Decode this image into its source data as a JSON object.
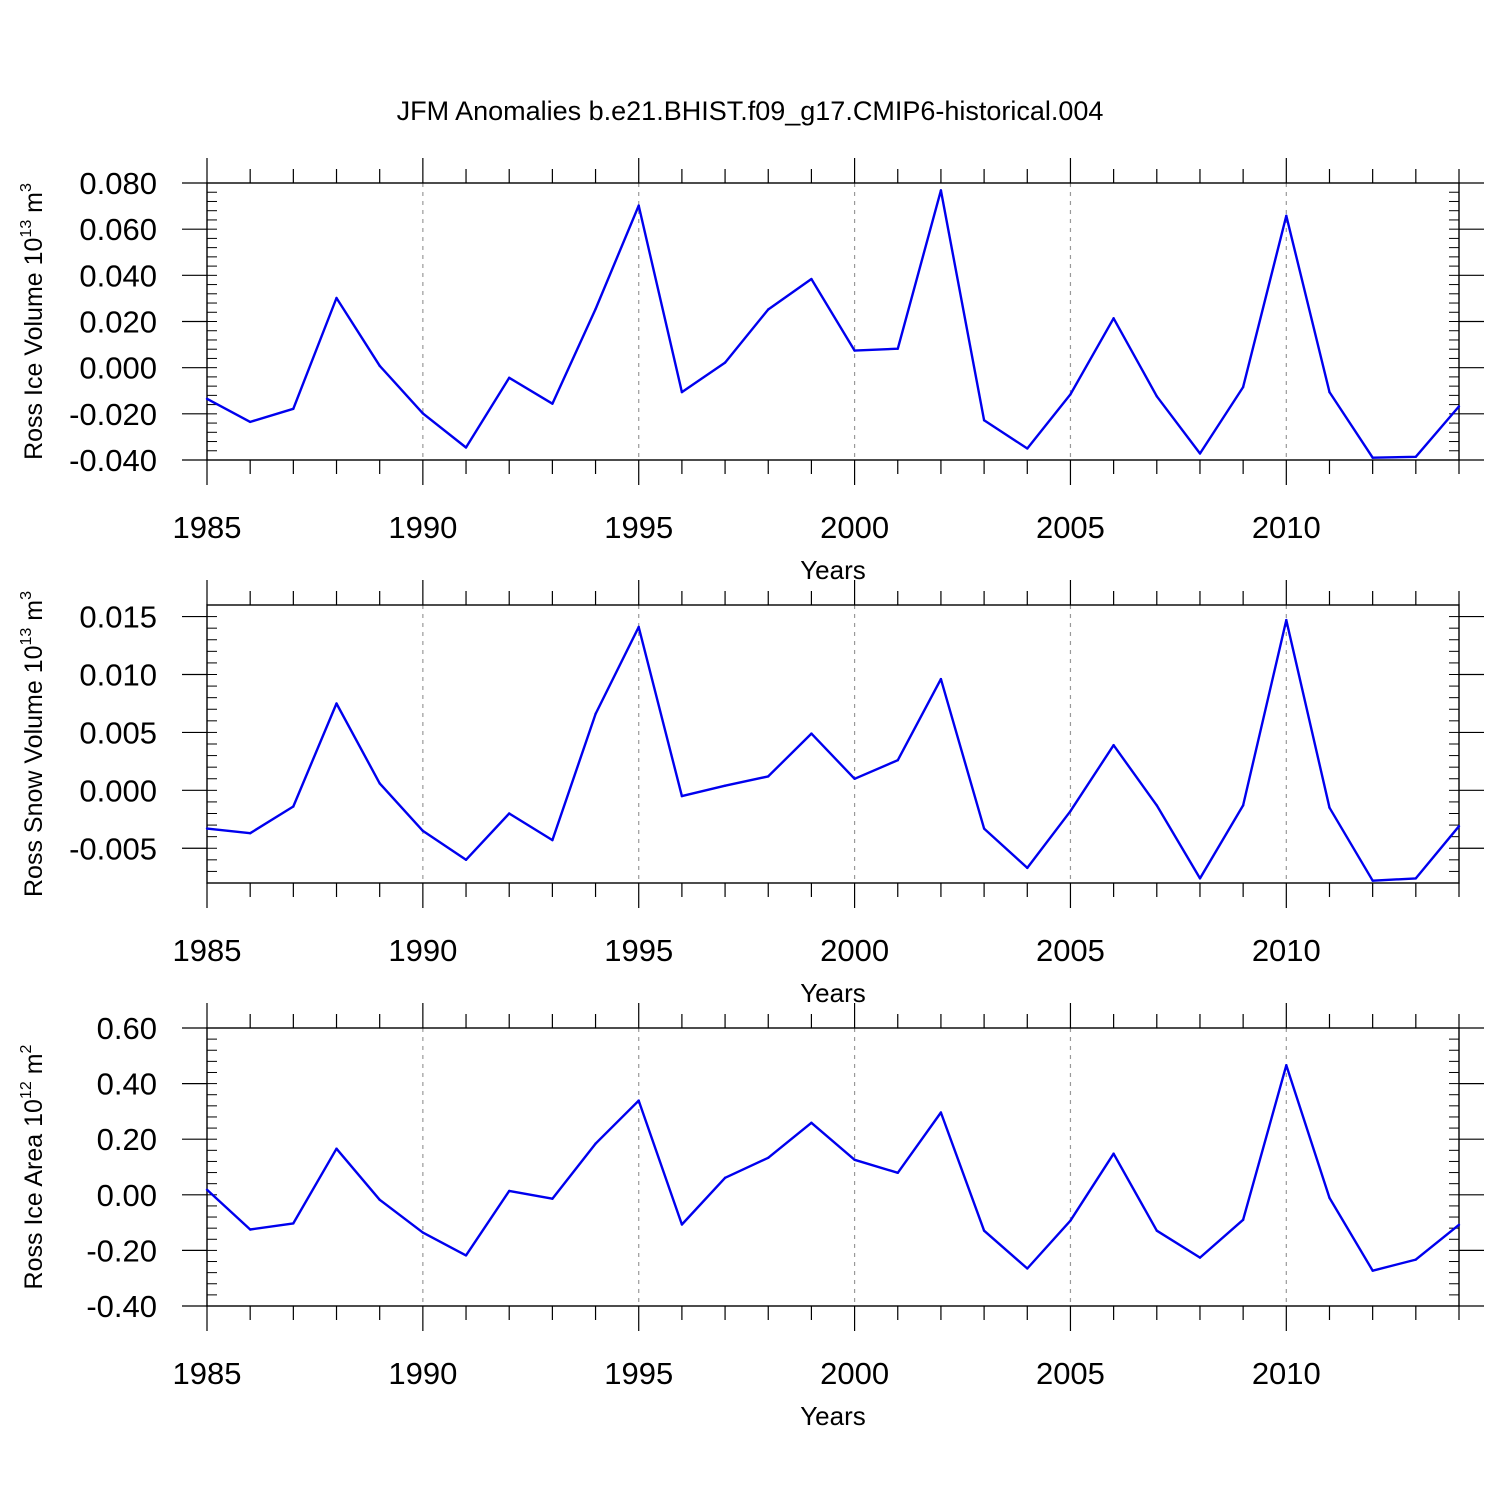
{
  "figure": {
    "title": "JFM Anomalies b.e21.BHIST.f09_g17.CMIP6-historical.004"
  },
  "colors": {
    "line": "#0000ee",
    "axis": "#000000",
    "grid": "#999999"
  },
  "chart_data": [
    {
      "type": "line",
      "ylabel": {
        "text": "Ross Ice Volume 10",
        "exponent": "13",
        "unit": " m",
        "unit_exponent": "3"
      },
      "xlabel": "Years",
      "xlim": [
        1985,
        2014
      ],
      "ylim": [
        -0.04,
        0.08
      ],
      "yticks": [
        -0.04,
        -0.02,
        0.0,
        0.02,
        0.04,
        0.06,
        0.08
      ],
      "ytick_labels": [
        "-0.040",
        "-0.020",
        "0.000",
        "0.020",
        "0.040",
        "0.060",
        "0.080"
      ],
      "xticks": [
        1985,
        1990,
        1995,
        2000,
        2005,
        2010
      ],
      "xtick_labels": [
        "1985",
        "1990",
        "1995",
        "2000",
        "2005",
        "2010"
      ],
      "x": [
        1985,
        1986,
        1987,
        1988,
        1989,
        1990,
        1991,
        1992,
        1993,
        1994,
        1995,
        1996,
        1997,
        1998,
        1999,
        2000,
        2001,
        2002,
        2003,
        2004,
        2005,
        2006,
        2007,
        2008,
        2009,
        2010,
        2011,
        2012,
        2013,
        2014
      ],
      "values": [
        -0.0135,
        -0.0235,
        -0.0178,
        0.0302,
        0.0008,
        -0.0198,
        -0.0346,
        -0.0044,
        -0.0156,
        0.0254,
        0.0702,
        -0.0106,
        0.0022,
        0.0252,
        0.0384,
        0.0074,
        0.0082,
        0.0768,
        -0.0228,
        -0.035,
        -0.0116,
        0.0214,
        -0.0124,
        -0.0372,
        -0.0084,
        0.0658,
        -0.0106,
        -0.039,
        -0.0386,
        -0.0168
      ]
    },
    {
      "type": "line",
      "ylabel": {
        "text": "Ross Snow Volume 10",
        "exponent": "13",
        "unit": " m",
        "unit_exponent": "3"
      },
      "xlabel": "Years",
      "xlim": [
        1985,
        2014
      ],
      "ylim": [
        -0.008,
        0.016
      ],
      "yticks": [
        -0.005,
        0.0,
        0.005,
        0.01,
        0.015
      ],
      "ytick_labels": [
        "-0.005",
        "0.000",
        "0.005",
        "0.010",
        "0.015"
      ],
      "xticks": [
        1985,
        1990,
        1995,
        2000,
        2005,
        2010
      ],
      "xtick_labels": [
        "1985",
        "1990",
        "1995",
        "2000",
        "2005",
        "2010"
      ],
      "x": [
        1985,
        1986,
        1987,
        1988,
        1989,
        1990,
        1991,
        1992,
        1993,
        1994,
        1995,
        1996,
        1997,
        1998,
        1999,
        2000,
        2001,
        2002,
        2003,
        2004,
        2005,
        2006,
        2007,
        2008,
        2009,
        2010,
        2011,
        2012,
        2013,
        2014
      ],
      "values": [
        -0.0033,
        -0.0037,
        -0.0014,
        0.0075,
        0.0006,
        -0.0035,
        -0.006,
        -0.002,
        -0.0043,
        0.0066,
        0.0141,
        -0.0005,
        0.0004,
        0.0012,
        0.0049,
        0.001,
        0.0026,
        0.0096,
        -0.0033,
        -0.0067,
        -0.0018,
        0.0039,
        -0.0013,
        -0.0076,
        -0.0013,
        0.0147,
        -0.0015,
        -0.0078,
        -0.0076,
        -0.0031
      ]
    },
    {
      "type": "line",
      "ylabel": {
        "text": "Ross Ice Area 10",
        "exponent": "12",
        "unit": " m",
        "unit_exponent": "2"
      },
      "xlabel": "Years",
      "xlim": [
        1985,
        2014
      ],
      "ylim": [
        -0.4,
        0.6
      ],
      "yticks": [
        -0.4,
        -0.2,
        0.0,
        0.2,
        0.4,
        0.6
      ],
      "ytick_labels": [
        "-0.40",
        "-0.20",
        "0.00",
        "0.20",
        "0.40",
        "0.60"
      ],
      "xticks": [
        1985,
        1990,
        1995,
        2000,
        2005,
        2010
      ],
      "xtick_labels": [
        "1985",
        "1990",
        "1995",
        "2000",
        "2005",
        "2010"
      ],
      "x": [
        1985,
        1986,
        1987,
        1988,
        1989,
        1990,
        1991,
        1992,
        1993,
        1994,
        1995,
        1996,
        1997,
        1998,
        1999,
        2000,
        2001,
        2002,
        2003,
        2004,
        2005,
        2006,
        2007,
        2008,
        2009,
        2010,
        2011,
        2012,
        2013,
        2014
      ],
      "values": [
        0.018,
        -0.125,
        -0.103,
        0.166,
        -0.018,
        -0.136,
        -0.218,
        0.014,
        -0.014,
        0.184,
        0.339,
        -0.107,
        0.061,
        0.133,
        0.259,
        0.126,
        0.079,
        0.296,
        -0.129,
        -0.265,
        -0.093,
        0.148,
        -0.129,
        -0.226,
        -0.09,
        0.466,
        -0.011,
        -0.273,
        -0.233,
        -0.108
      ]
    }
  ]
}
